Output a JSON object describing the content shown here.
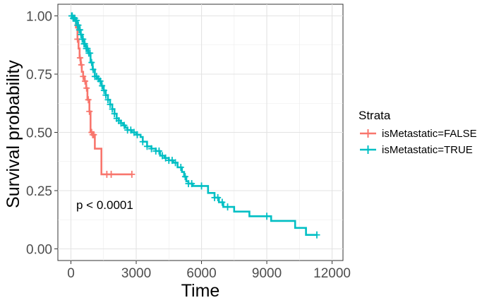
{
  "chart_data": {
    "type": "line",
    "subtype": "kaplan-meier step curve with censor marks",
    "title": "",
    "xlabel": "Time",
    "ylabel": "Survival probability",
    "xlim": [
      -600,
      12500
    ],
    "ylim": [
      -0.05,
      1.05
    ],
    "x_ticks": [
      0,
      3000,
      6000,
      9000,
      12000
    ],
    "x_tick_labels": [
      "0",
      "3000",
      "6000",
      "9000",
      "12000"
    ],
    "y_ticks": [
      0.0,
      0.25,
      0.5,
      0.75,
      1.0
    ],
    "y_tick_labels": [
      "0.00",
      "0.25",
      "0.50",
      "0.75",
      "1.00"
    ],
    "grid": true,
    "legend": {
      "title": "Strata",
      "position": "right"
    },
    "annotation": "p < 0.0001",
    "series": [
      {
        "name": "isMetastatic=FALSE",
        "color": "#F8766D",
        "steps": [
          [
            0,
            1.0
          ],
          [
            150,
            0.98
          ],
          [
            230,
            0.95
          ],
          [
            300,
            0.9
          ],
          [
            350,
            0.86
          ],
          [
            400,
            0.82
          ],
          [
            450,
            0.79
          ],
          [
            500,
            0.76
          ],
          [
            560,
            0.74
          ],
          [
            620,
            0.72
          ],
          [
            700,
            0.69
          ],
          [
            760,
            0.64
          ],
          [
            850,
            0.59
          ],
          [
            900,
            0.5
          ],
          [
            1000,
            0.49
          ],
          [
            1100,
            0.43
          ],
          [
            1400,
            0.32
          ],
          [
            2800,
            0.32
          ]
        ],
        "censor_times": [
          300,
          420,
          480,
          560,
          650,
          720,
          800,
          850,
          950,
          1000,
          1050,
          1650,
          1850,
          2800
        ]
      },
      {
        "name": "isMetastatic=TRUE",
        "color": "#00BFC4",
        "steps": [
          [
            0,
            1.0
          ],
          [
            100,
            0.99
          ],
          [
            200,
            0.98
          ],
          [
            300,
            0.96
          ],
          [
            380,
            0.94
          ],
          [
            450,
            0.92
          ],
          [
            520,
            0.9
          ],
          [
            600,
            0.88
          ],
          [
            700,
            0.86
          ],
          [
            800,
            0.84
          ],
          [
            900,
            0.8
          ],
          [
            1000,
            0.77
          ],
          [
            1100,
            0.74
          ],
          [
            1200,
            0.73
          ],
          [
            1300,
            0.72
          ],
          [
            1400,
            0.7
          ],
          [
            1500,
            0.68
          ],
          [
            1600,
            0.66
          ],
          [
            1700,
            0.64
          ],
          [
            1800,
            0.62
          ],
          [
            1900,
            0.6
          ],
          [
            2000,
            0.58
          ],
          [
            2100,
            0.56
          ],
          [
            2200,
            0.55
          ],
          [
            2300,
            0.54
          ],
          [
            2400,
            0.53
          ],
          [
            2500,
            0.52
          ],
          [
            2600,
            0.51
          ],
          [
            2800,
            0.5
          ],
          [
            3000,
            0.49
          ],
          [
            3200,
            0.48
          ],
          [
            3300,
            0.46
          ],
          [
            3500,
            0.44
          ],
          [
            3700,
            0.43
          ],
          [
            3900,
            0.42
          ],
          [
            4100,
            0.4
          ],
          [
            4300,
            0.39
          ],
          [
            4500,
            0.38
          ],
          [
            4700,
            0.37
          ],
          [
            4900,
            0.35
          ],
          [
            5100,
            0.33
          ],
          [
            5200,
            0.31
          ],
          [
            5300,
            0.29
          ],
          [
            5400,
            0.28
          ],
          [
            5600,
            0.27
          ],
          [
            6300,
            0.24
          ],
          [
            6600,
            0.22
          ],
          [
            6800,
            0.2
          ],
          [
            7000,
            0.18
          ],
          [
            7500,
            0.16
          ],
          [
            8200,
            0.14
          ],
          [
            9200,
            0.12
          ],
          [
            10300,
            0.09
          ],
          [
            10800,
            0.06
          ],
          [
            11300,
            0.06
          ]
        ],
        "censor_times": [
          30,
          60,
          100,
          140,
          180,
          220,
          260,
          300,
          340,
          380,
          420,
          460,
          520,
          560,
          600,
          640,
          700,
          760,
          820,
          880,
          950,
          1020,
          1100,
          1180,
          1260,
          1350,
          1430,
          1520,
          1600,
          1700,
          1800,
          1900,
          2000,
          2100,
          2200,
          2300,
          2450,
          2600,
          2750,
          2900,
          3050,
          3300,
          3500,
          3700,
          3900,
          4050,
          4200,
          4350,
          4500,
          4650,
          4800,
          5050,
          5250,
          5400,
          5550,
          6000,
          6600,
          6750,
          6950,
          7200,
          9000,
          11300
        ]
      }
    ]
  }
}
